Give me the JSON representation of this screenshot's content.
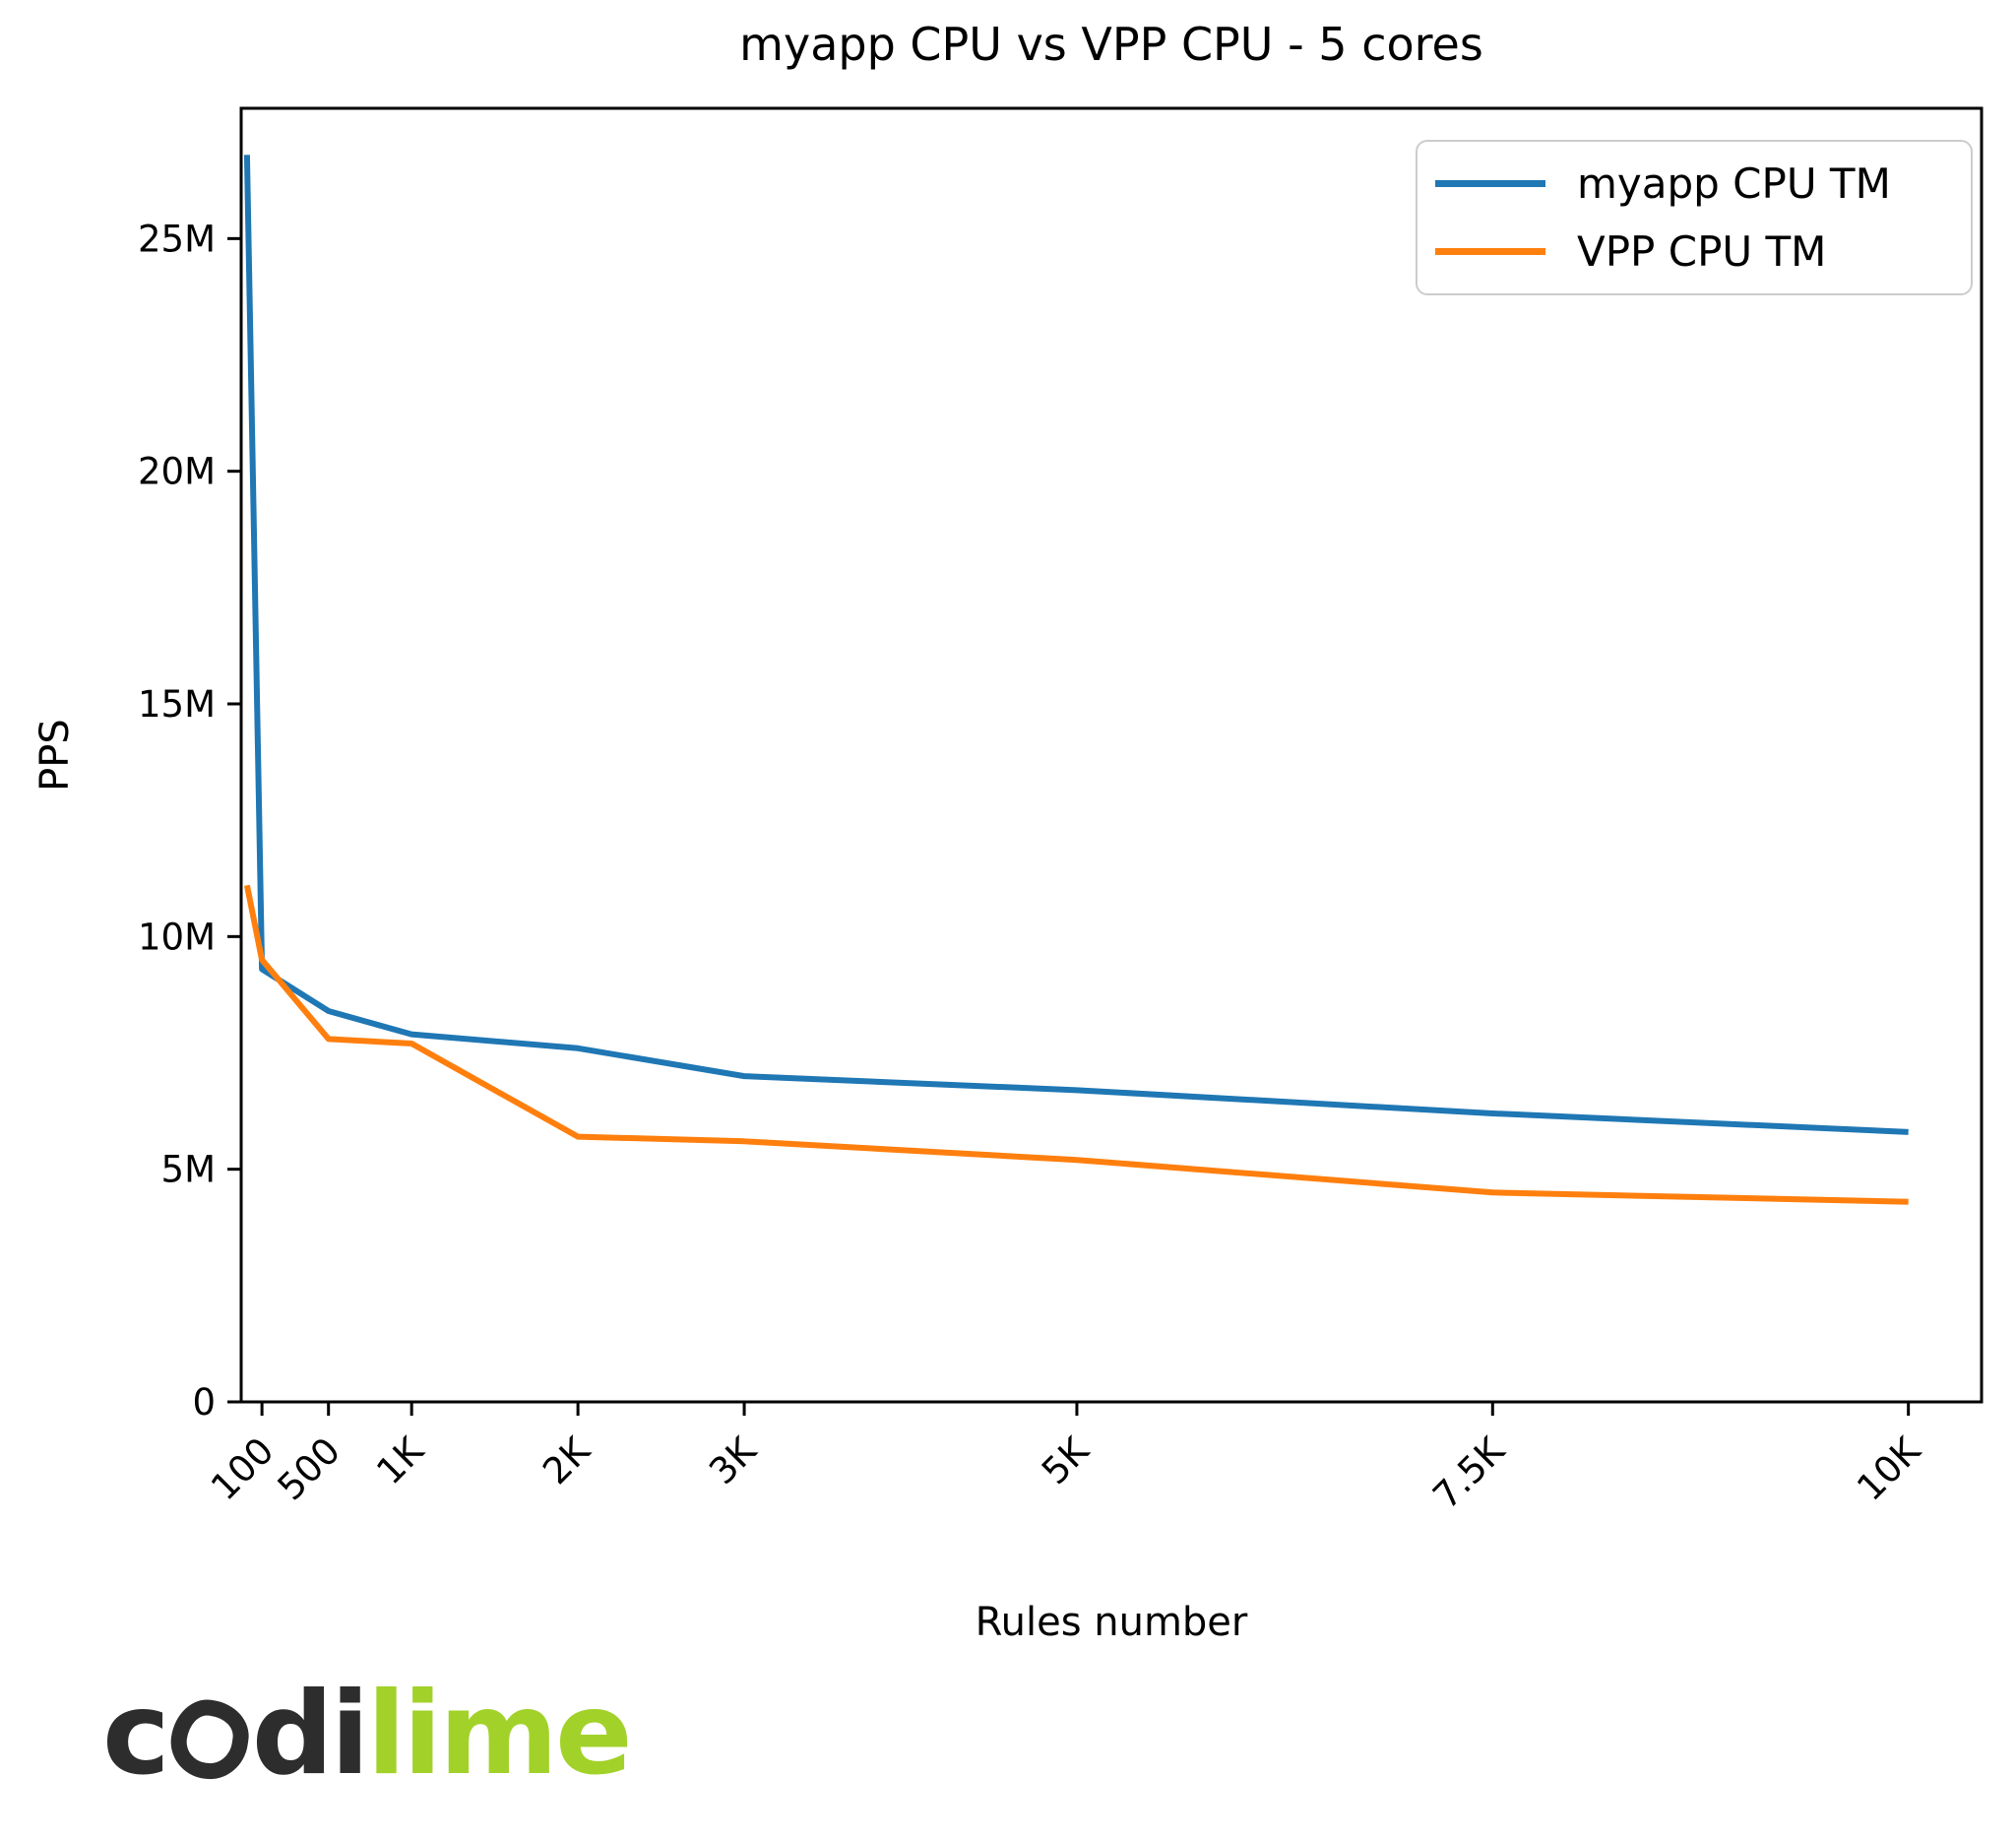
{
  "chart_data": {
    "type": "line",
    "title": "myapp CPU vs VPP CPU - 5 cores",
    "xlabel": "Rules number",
    "ylabel": "PPS",
    "grid": false,
    "legend_position": "upper right",
    "x": [
      10,
      100,
      500,
      1000,
      2000,
      3000,
      5000,
      7500,
      10000
    ],
    "series": [
      {
        "name": "myapp CPU TM",
        "color": "#1f77b4",
        "values": [
          26800000,
          9300000,
          8400000,
          7900000,
          7600000,
          7000000,
          6700000,
          6200000,
          5800000
        ]
      },
      {
        "name": "VPP CPU TM",
        "color": "#ff7f0e",
        "values": [
          11100000,
          9500000,
          7800000,
          7700000,
          5700000,
          5600000,
          5200000,
          4500000,
          4300000
        ]
      }
    ],
    "x_ticks": {
      "values": [
        100,
        500,
        1000,
        2000,
        3000,
        5000,
        7500,
        10000
      ],
      "labels": [
        "100",
        "500",
        "1K",
        "2K",
        "3K",
        "5K",
        "7.5K",
        "10K"
      ]
    },
    "y_ticks": {
      "values": [
        0,
        5000000,
        10000000,
        15000000,
        20000000,
        25000000
      ],
      "labels": [
        "0",
        "5M",
        "10M",
        "15M",
        "20M",
        "25M"
      ]
    },
    "x_range": [
      -25,
      10440
    ],
    "y_range": [
      0,
      27800000
    ]
  },
  "branding": {
    "logo": {
      "part1": "c",
      "part2": "di",
      "part3": "lime",
      "dark_color": "#2d2d2d",
      "lime_color": "#a2d229"
    }
  }
}
